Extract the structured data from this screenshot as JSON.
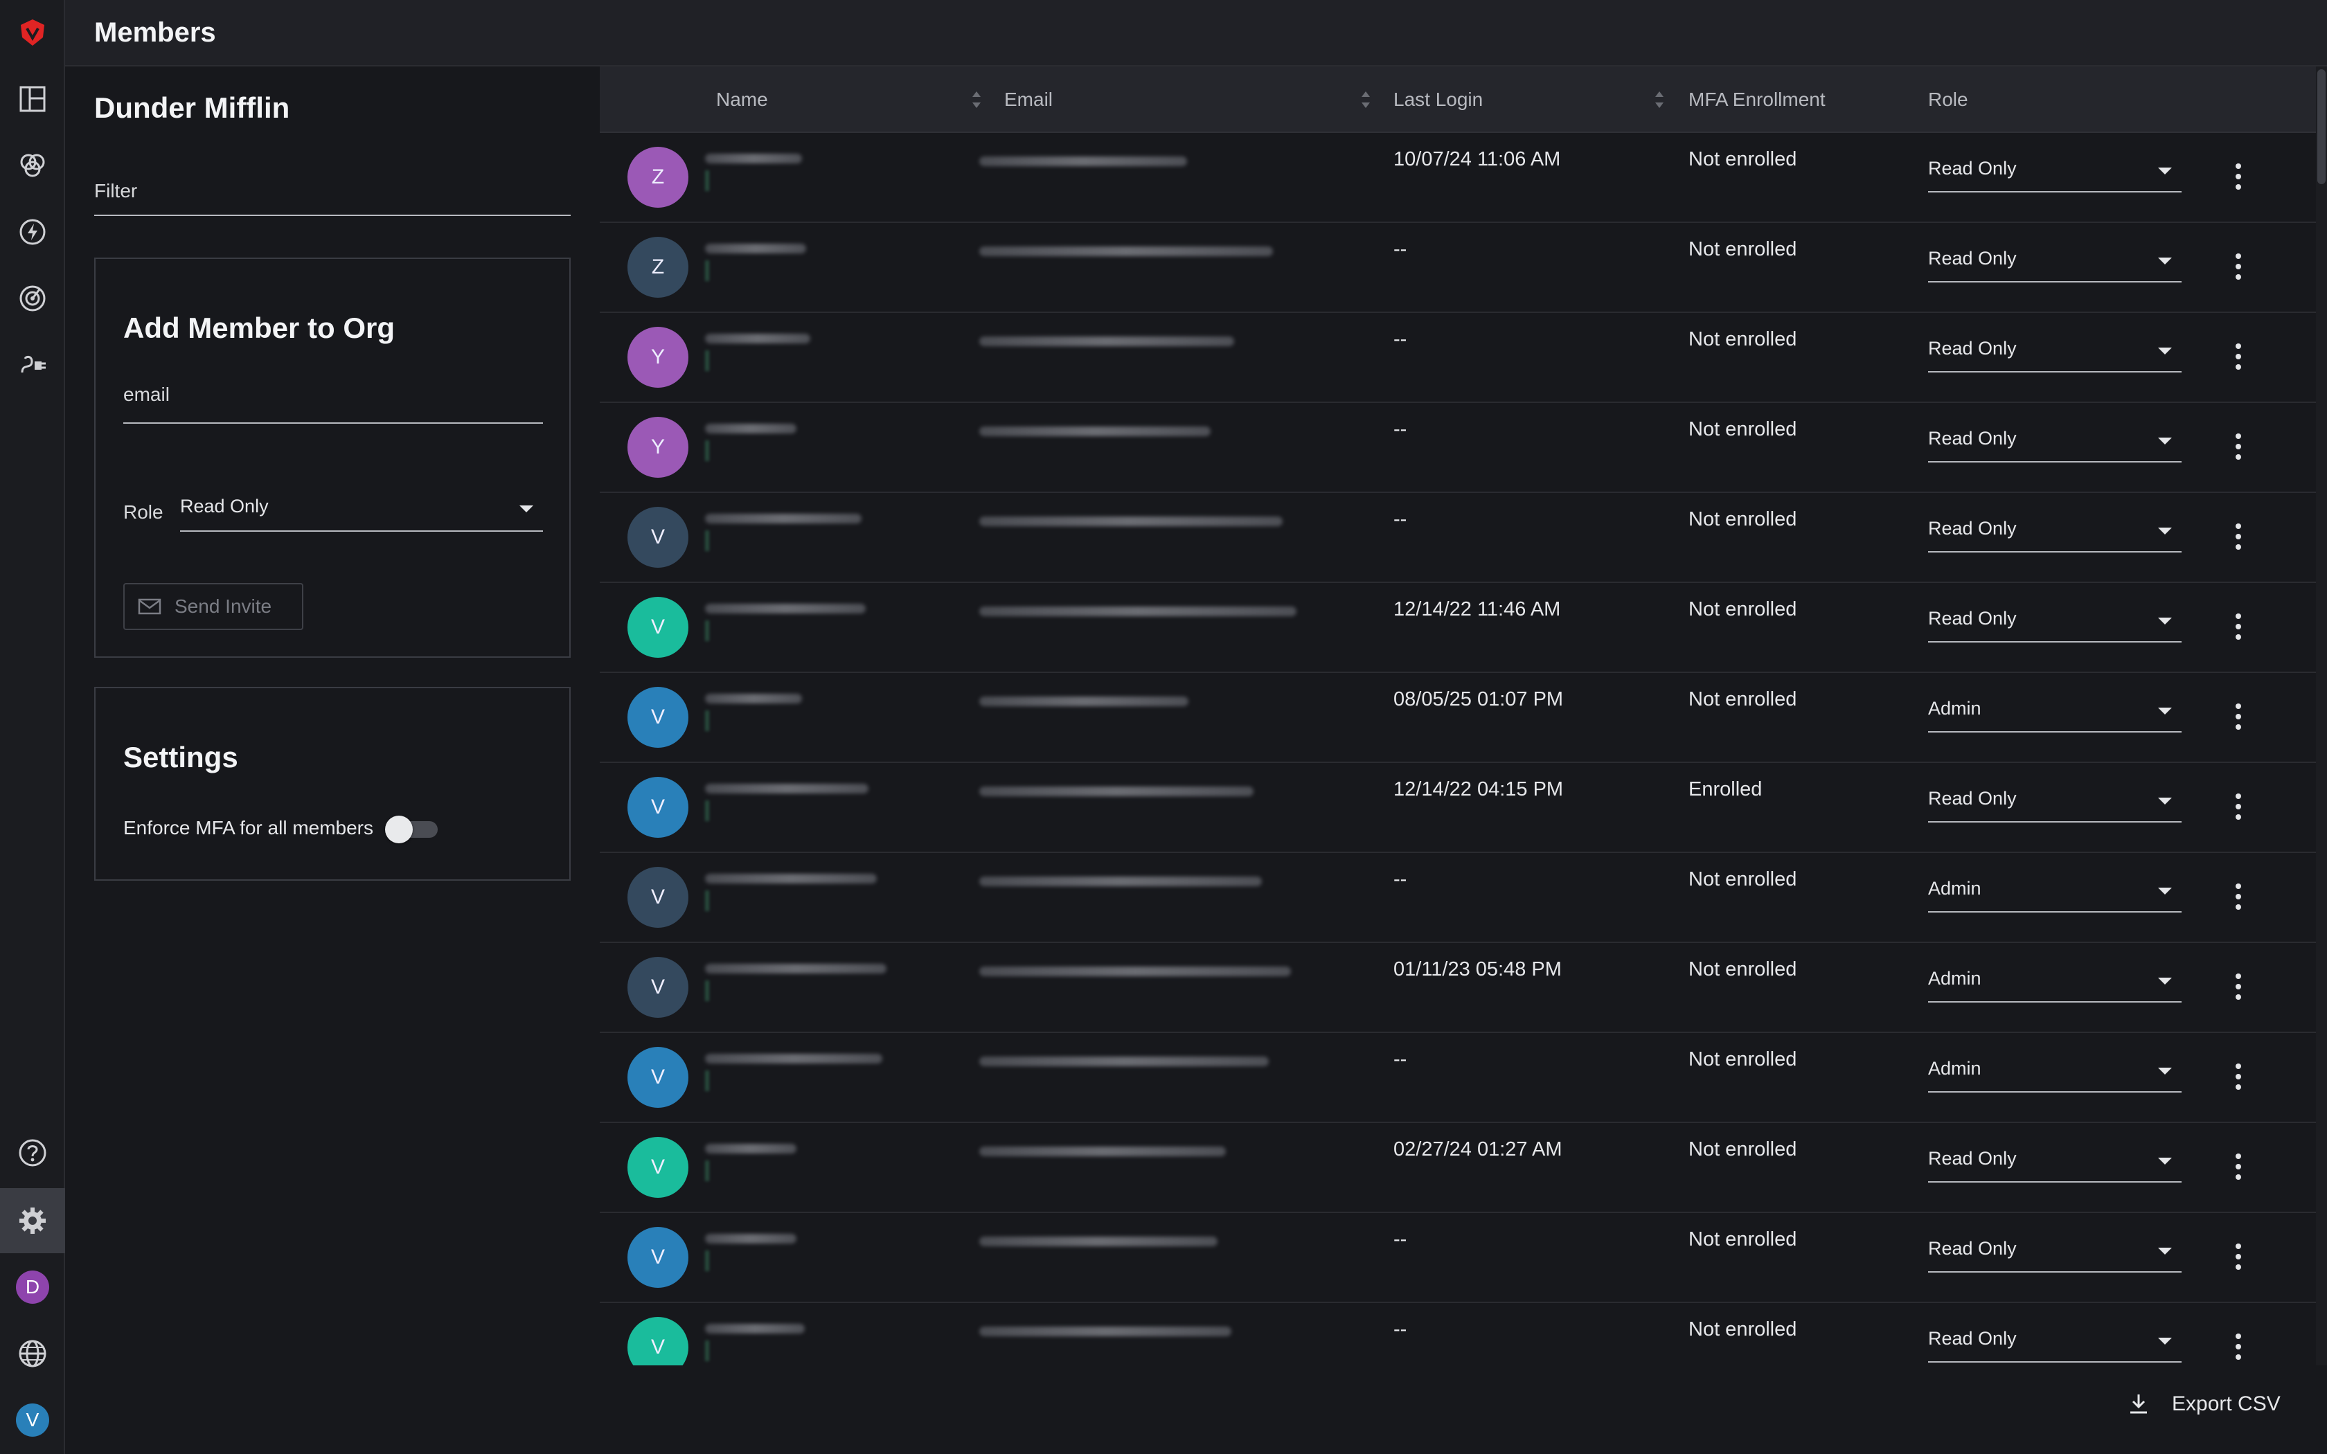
{
  "page": {
    "title": "Members"
  },
  "org": {
    "name": "Dunder Mifflin"
  },
  "filter": {
    "placeholder": "Filter"
  },
  "add_member": {
    "title": "Add Member to Org",
    "email_placeholder": "email",
    "role_label": "Role",
    "role_value": "Read Only",
    "send_label": "Send Invite"
  },
  "settings": {
    "title": "Settings",
    "mfa_label": "Enforce MFA for all members",
    "mfa_enforced": false
  },
  "table": {
    "columns": {
      "name": "Name",
      "email": "Email",
      "last_login": "Last Login",
      "mfa": "MFA Enrollment",
      "role": "Role"
    },
    "rows": [
      {
        "initial": "Z",
        "color": "#9b59b6",
        "last_login": "10/07/24 11:06 AM",
        "mfa": "Not enrolled",
        "role": "Read Only"
      },
      {
        "initial": "Z",
        "color": "#34495e",
        "last_login": "--",
        "mfa": "Not enrolled",
        "role": "Read Only"
      },
      {
        "initial": "Y",
        "color": "#9b59b6",
        "last_login": "--",
        "mfa": "Not enrolled",
        "role": "Read Only"
      },
      {
        "initial": "Y",
        "color": "#9b59b6",
        "last_login": "--",
        "mfa": "Not enrolled",
        "role": "Read Only"
      },
      {
        "initial": "V",
        "color": "#34495e",
        "last_login": "--",
        "mfa": "Not enrolled",
        "role": "Read Only"
      },
      {
        "initial": "V",
        "color": "#1abc9c",
        "last_login": "12/14/22 11:46 AM",
        "mfa": "Not enrolled",
        "role": "Read Only"
      },
      {
        "initial": "V",
        "color": "#2980b9",
        "last_login": "08/05/25 01:07 PM",
        "mfa": "Not enrolled",
        "role": "Admin"
      },
      {
        "initial": "V",
        "color": "#2980b9",
        "last_login": "12/14/22 04:15 PM",
        "mfa": "Enrolled",
        "role": "Read Only"
      },
      {
        "initial": "V",
        "color": "#34495e",
        "last_login": "--",
        "mfa": "Not enrolled",
        "role": "Admin"
      },
      {
        "initial": "V",
        "color": "#34495e",
        "last_login": "01/11/23 05:48 PM",
        "mfa": "Not enrolled",
        "role": "Admin"
      },
      {
        "initial": "V",
        "color": "#2980b9",
        "last_login": "--",
        "mfa": "Not enrolled",
        "role": "Admin"
      },
      {
        "initial": "V",
        "color": "#1abc9c",
        "last_login": "02/27/24 01:27 AM",
        "mfa": "Not enrolled",
        "role": "Read Only"
      },
      {
        "initial": "V",
        "color": "#2980b9",
        "last_login": "--",
        "mfa": "Not enrolled",
        "role": "Read Only"
      },
      {
        "initial": "V",
        "color": "#1abc9c",
        "last_login": "--",
        "mfa": "Not enrolled",
        "role": "Read Only"
      }
    ]
  },
  "export": {
    "label": "Export CSV"
  },
  "rail": {
    "user_initial_d": "D",
    "user_initial_v": "V",
    "brand_color": "#e02424",
    "avatar_d_color": "#8e44ad",
    "avatar_v_color": "#2980b9"
  }
}
